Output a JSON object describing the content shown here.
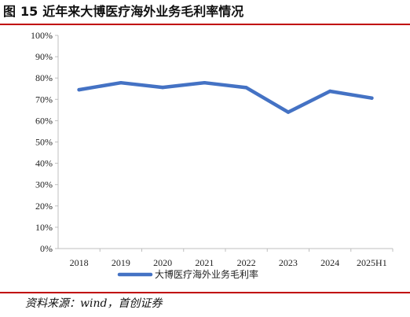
{
  "figure": {
    "label": "图",
    "number": "15",
    "title": "近年来大博医疗海外业务毛利率情况"
  },
  "source": "资料来源：wind，首创证券",
  "colors": {
    "rule": "#c00000",
    "series": "#4472c4",
    "axis": "#bfbfbf"
  },
  "chart_data": {
    "type": "line",
    "title": "近年来大博医疗海外业务毛利率情况",
    "categories": [
      "2018",
      "2019",
      "2020",
      "2021",
      "2022",
      "2023",
      "2024",
      "2025H1"
    ],
    "series": [
      {
        "name": "大博医疗海外业务毛利率",
        "values": [
          74.5,
          77.8,
          75.6,
          77.8,
          75.5,
          64.0,
          73.8,
          70.6
        ]
      }
    ],
    "ylim": [
      0,
      100
    ],
    "yticks": [
      "0%",
      "10%",
      "20%",
      "30%",
      "40%",
      "50%",
      "60%",
      "70%",
      "80%",
      "90%",
      "100%"
    ],
    "y_unit": "%",
    "grid": false,
    "legend": "bottom"
  }
}
